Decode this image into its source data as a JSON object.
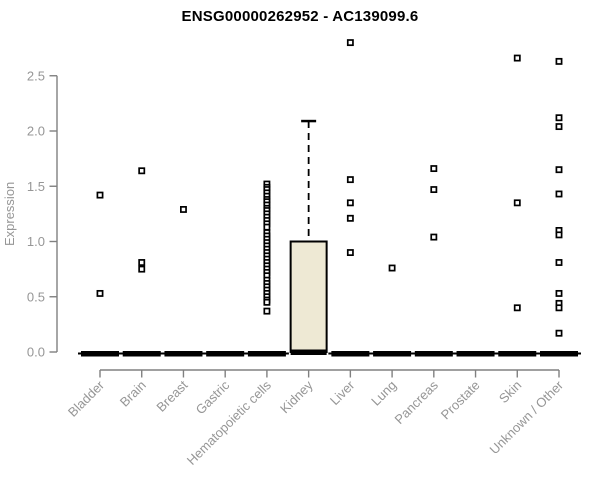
{
  "chart_data": {
    "type": "box",
    "title": "ENSG00000262952 - AC139099.6",
    "xlabel": "",
    "ylabel": "Expression",
    "ylim": [
      0,
      2.8
    ],
    "yticks": [
      0.0,
      0.5,
      1.0,
      1.5,
      2.0,
      2.5
    ],
    "grid": false,
    "legend": "none",
    "marker": "open-square",
    "categories": [
      "Bladder",
      "Brain",
      "Breast",
      "Gastric",
      "Hematopoietic cells",
      "Kidney",
      "Liver",
      "Lung",
      "Pancreas",
      "Prostate",
      "Skin",
      "Unknown / Other"
    ],
    "boxes": [
      {
        "category": "Bladder",
        "q1": 0,
        "median": 0,
        "q3": 0,
        "whisker_low": 0,
        "whisker_high": 0,
        "outliers": [
          1.42,
          0.53
        ]
      },
      {
        "category": "Brain",
        "q1": 0,
        "median": 0,
        "q3": 0,
        "whisker_low": 0,
        "whisker_high": 0,
        "outliers": [
          1.64,
          0.81,
          0.75
        ]
      },
      {
        "category": "Breast",
        "q1": 0,
        "median": 0,
        "q3": 0,
        "whisker_low": 0,
        "whisker_high": 0,
        "outliers": [
          1.29
        ]
      },
      {
        "category": "Gastric",
        "q1": 0,
        "median": 0,
        "q3": 0,
        "whisker_low": 0,
        "whisker_high": 0,
        "outliers": []
      },
      {
        "category": "Hematopoietic cells",
        "q1": 0,
        "median": 0,
        "q3": 0,
        "whisker_low": 0,
        "whisker_high": 0,
        "outliers": [
          1.52,
          1.49,
          1.47,
          1.44,
          1.41,
          1.38,
          1.36,
          1.33,
          1.3,
          1.28,
          1.25,
          1.22,
          1.19,
          1.16,
          1.13,
          1.08,
          1.05,
          1.02,
          0.99,
          0.96,
          0.93,
          0.9,
          0.87,
          0.84,
          0.81,
          0.78,
          0.75,
          0.72,
          0.69,
          0.65,
          0.62,
          0.59,
          0.56,
          0.53,
          0.5,
          0.47,
          0.45,
          0.37
        ]
      },
      {
        "category": "Kidney",
        "q1": 0,
        "median": 0,
        "q3": 1.0,
        "whisker_low": 0,
        "whisker_high": 2.09,
        "outliers": []
      },
      {
        "category": "Liver",
        "q1": 0,
        "median": 0,
        "q3": 0,
        "whisker_low": 0,
        "whisker_high": 0,
        "outliers": [
          2.8,
          1.56,
          1.35,
          1.21,
          0.9
        ]
      },
      {
        "category": "Lung",
        "q1": 0,
        "median": 0,
        "q3": 0,
        "whisker_low": 0,
        "whisker_high": 0,
        "outliers": [
          0.76
        ]
      },
      {
        "category": "Pancreas",
        "q1": 0,
        "median": 0,
        "q3": 0,
        "whisker_low": 0,
        "whisker_high": 0,
        "outliers": [
          1.66,
          1.47,
          1.04
        ]
      },
      {
        "category": "Prostate",
        "q1": 0,
        "median": 0,
        "q3": 0,
        "whisker_low": 0,
        "whisker_high": 0,
        "outliers": []
      },
      {
        "category": "Skin",
        "q1": 0,
        "median": 0,
        "q3": 0,
        "whisker_low": 0,
        "whisker_high": 0,
        "outliers": [
          2.66,
          1.35,
          0.4
        ]
      },
      {
        "category": "Unknown / Other",
        "q1": 0,
        "median": 0,
        "q3": 0,
        "whisker_low": 0,
        "whisker_high": 0,
        "outliers": [
          2.63,
          2.12,
          2.04,
          1.65,
          1.43,
          1.1,
          1.06,
          0.81,
          0.53,
          0.44,
          0.4,
          0.17
        ]
      }
    ],
    "colors": {
      "box_fill": "#EEE9D4",
      "box_stroke": "#000000",
      "point": "#000000",
      "axis": "#808080",
      "tick_label": "#969696",
      "title": "#000000"
    }
  }
}
